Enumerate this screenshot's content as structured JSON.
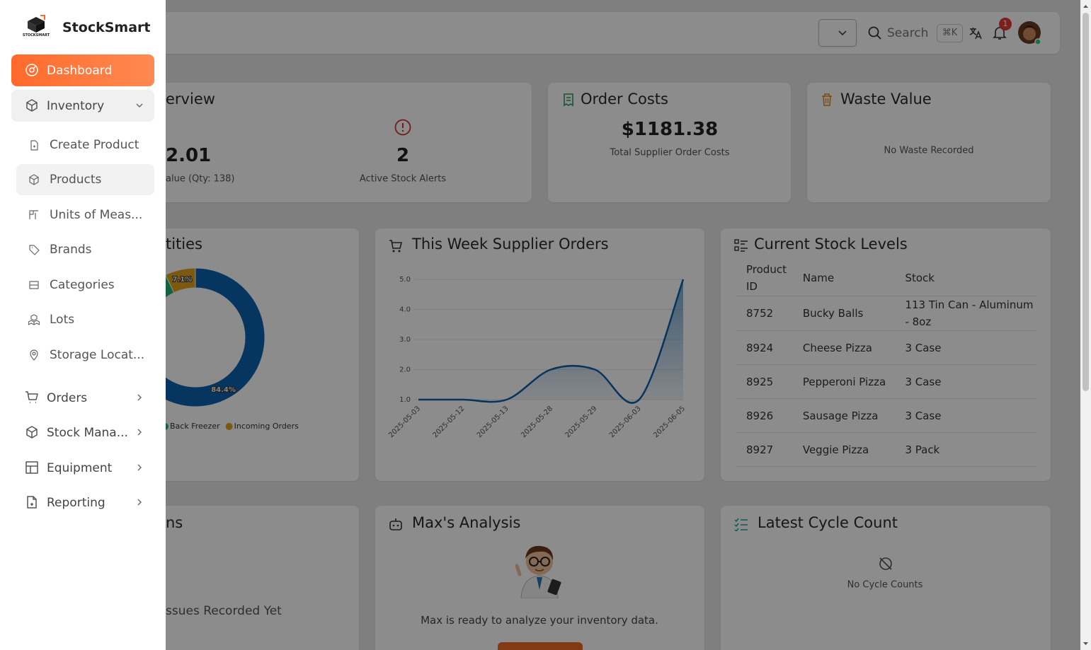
{
  "sidebar": {
    "brand": "StockSmart",
    "logo_text": "STOCKSMART",
    "menu": [
      {
        "label": "Dashboard"
      },
      {
        "label": "Inventory",
        "children": [
          "Create Product",
          "Products",
          "Units of Meas...",
          "Brands",
          "Categories",
          "Lots",
          "Storage Locat..."
        ]
      },
      {
        "label": "Orders"
      },
      {
        "label": "Stock Mana..."
      },
      {
        "label": "Equipment"
      },
      {
        "label": "Reporting"
      }
    ]
  },
  "header": {
    "search": "Search",
    "shortcut": "⌘K",
    "notification_count": 1
  },
  "cards": {
    "overview": {
      "title": "erview",
      "value": "2.01",
      "value_caption": "alue (Qty: 138)",
      "alerts": 2,
      "alerts_caption": "Active Stock Alerts"
    },
    "order_costs": {
      "title": "Order Costs",
      "value": "$1181.38",
      "caption": "Total Supplier Order Costs"
    },
    "waste_value": {
      "title": "Waste Value",
      "empty": "No Waste Recorded"
    },
    "quantities": {
      "title": "tities"
    },
    "supplier_orders": {
      "title": "This Week Supplier Orders"
    },
    "stock_levels": {
      "title": "Current Stock Levels",
      "columns": [
        "Product ID",
        "Name",
        "Stock"
      ],
      "rows": [
        [
          8752,
          "Bucky Balls",
          "113 Tin Can - Aluminum - 8oz"
        ],
        [
          8924,
          "Cheese Pizza",
          "3 Case"
        ],
        [
          8925,
          "Pepperoni Pizza",
          "3 Case"
        ],
        [
          8926,
          "Sausage Pizza",
          "3 Case"
        ],
        [
          8927,
          "Veggie Pizza",
          "3 Pack"
        ]
      ]
    },
    "issues": {
      "title": "ns",
      "empty": "ssues Recorded Yet"
    },
    "analysis": {
      "title": "Max's Analysis",
      "text": "Max is ready to analyze your inventory data."
    },
    "cycle_count": {
      "title": "Latest Cycle Count",
      "empty": "No Cycle Counts"
    }
  },
  "chart_data": [
    {
      "type": "pie",
      "categories": [
        null,
        "Back Freezer",
        "Incoming Orders"
      ],
      "values": [
        84.4,
        8.5,
        7.1
      ],
      "value_labels": [
        "84.4%",
        null,
        "7.1%"
      ],
      "colors": [
        "#0b63ad",
        "#22b573",
        "#e0a21c"
      ]
    },
    {
      "type": "line",
      "categories": [
        "2025-05-03",
        "2025-05-12",
        "2025-05-13",
        "2025-05-28",
        "2025-05-29",
        "2025-06-03",
        "2025-06-05"
      ],
      "values": [
        1,
        1,
        1,
        2,
        2,
        1,
        5
      ],
      "color": "#0b5fa8",
      "ylim": [
        1,
        5
      ],
      "yticks": [
        {
          "value": 1,
          "label": "1.0"
        },
        {
          "value": 2,
          "label": "2.0"
        },
        {
          "value": 3,
          "label": "3.0"
        },
        {
          "value": 4,
          "label": "4.0"
        },
        {
          "value": 5,
          "label": "5.0"
        }
      ],
      "grid": true
    }
  ]
}
